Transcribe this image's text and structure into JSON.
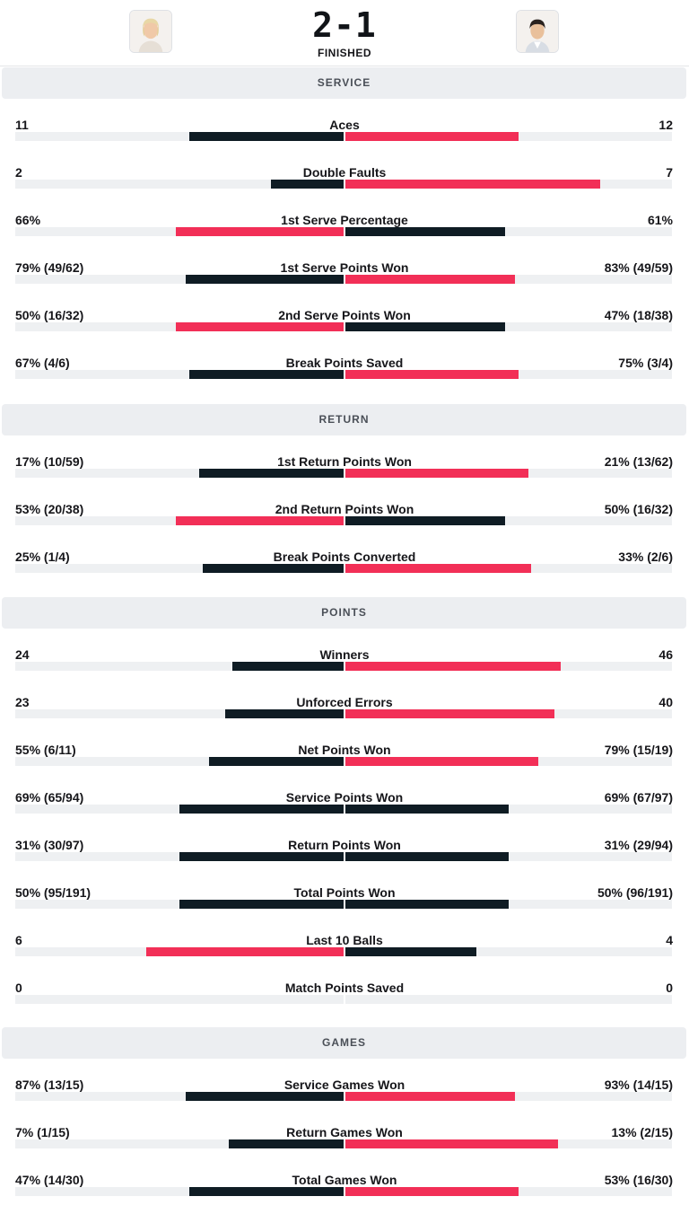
{
  "match": {
    "score": "2-1",
    "status": "FINISHED",
    "player1_avatar": "player-photo-blond",
    "player2_avatar": "player-photo-dark-hair"
  },
  "colors": {
    "dark": "#0f1c24",
    "red": "#f22f57",
    "track": "#eef0f2",
    "section_bg": "#eceef1"
  },
  "sections": [
    {
      "title": "SERVICE",
      "rows": [
        {
          "label": "Aces",
          "left": "11",
          "right": "12",
          "left_fill": 0.47,
          "right_fill": 0.53,
          "left_color": "dark",
          "right_color": "red"
        },
        {
          "label": "Double Faults",
          "left": "2",
          "right": "7",
          "left_fill": 0.22,
          "right_fill": 0.78,
          "left_color": "dark",
          "right_color": "red"
        },
        {
          "label": "1st Serve Percentage",
          "left": "66%",
          "right": "61%",
          "left_fill": 0.51,
          "right_fill": 0.49,
          "left_color": "red",
          "right_color": "dark"
        },
        {
          "label": "1st Serve Points Won",
          "left": "79% (49/62)",
          "right": "83% (49/59)",
          "left_fill": 0.48,
          "right_fill": 0.52,
          "left_color": "dark",
          "right_color": "red"
        },
        {
          "label": "2nd Serve Points Won",
          "left": "50% (16/32)",
          "right": "47% (18/38)",
          "left_fill": 0.51,
          "right_fill": 0.49,
          "left_color": "red",
          "right_color": "dark"
        },
        {
          "label": "Break Points Saved",
          "left": "67% (4/6)",
          "right": "75% (3/4)",
          "left_fill": 0.47,
          "right_fill": 0.53,
          "left_color": "dark",
          "right_color": "red"
        }
      ]
    },
    {
      "title": "RETURN",
      "rows": [
        {
          "label": "1st Return Points Won",
          "left": "17% (10/59)",
          "right": "21% (13/62)",
          "left_fill": 0.44,
          "right_fill": 0.56,
          "left_color": "dark",
          "right_color": "red"
        },
        {
          "label": "2nd Return Points Won",
          "left": "53% (20/38)",
          "right": "50% (16/32)",
          "left_fill": 0.51,
          "right_fill": 0.49,
          "left_color": "red",
          "right_color": "dark"
        },
        {
          "label": "Break Points Converted",
          "left": "25% (1/4)",
          "right": "33% (2/6)",
          "left_fill": 0.43,
          "right_fill": 0.57,
          "left_color": "dark",
          "right_color": "red"
        }
      ]
    },
    {
      "title": "POINTS",
      "rows": [
        {
          "label": "Winners",
          "left": "24",
          "right": "46",
          "left_fill": 0.34,
          "right_fill": 0.66,
          "left_color": "dark",
          "right_color": "red"
        },
        {
          "label": "Unforced Errors",
          "left": "23",
          "right": "40",
          "left_fill": 0.36,
          "right_fill": 0.64,
          "left_color": "dark",
          "right_color": "red"
        },
        {
          "label": "Net Points Won",
          "left": "55% (6/11)",
          "right": "79% (15/19)",
          "left_fill": 0.41,
          "right_fill": 0.59,
          "left_color": "dark",
          "right_color": "red"
        },
        {
          "label": "Service Points Won",
          "left": "69% (65/94)",
          "right": "69% (67/97)",
          "left_fill": 0.5,
          "right_fill": 0.5,
          "left_color": "dark",
          "right_color": "dark"
        },
        {
          "label": "Return Points Won",
          "left": "31% (30/97)",
          "right": "31% (29/94)",
          "left_fill": 0.5,
          "right_fill": 0.5,
          "left_color": "dark",
          "right_color": "dark"
        },
        {
          "label": "Total Points Won",
          "left": "50% (95/191)",
          "right": "50% (96/191)",
          "left_fill": 0.5,
          "right_fill": 0.5,
          "left_color": "dark",
          "right_color": "dark"
        },
        {
          "label": "Last 10 Balls",
          "left": "6",
          "right": "4",
          "left_fill": 0.6,
          "right_fill": 0.4,
          "left_color": "red",
          "right_color": "dark"
        },
        {
          "label": "Match Points Saved",
          "left": "0",
          "right": "0",
          "left_fill": 0,
          "right_fill": 0,
          "left_color": "dark",
          "right_color": "dark"
        }
      ]
    },
    {
      "title": "GAMES",
      "rows": [
        {
          "label": "Service Games Won",
          "left": "87% (13/15)",
          "right": "93% (14/15)",
          "left_fill": 0.48,
          "right_fill": 0.52,
          "left_color": "dark",
          "right_color": "red"
        },
        {
          "label": "Return Games Won",
          "left": "7% (1/15)",
          "right": "13% (2/15)",
          "left_fill": 0.35,
          "right_fill": 0.65,
          "left_color": "dark",
          "right_color": "red"
        },
        {
          "label": "Total Games Won",
          "left": "47% (14/30)",
          "right": "53% (16/30)",
          "left_fill": 0.47,
          "right_fill": 0.53,
          "left_color": "dark",
          "right_color": "red"
        }
      ]
    }
  ]
}
